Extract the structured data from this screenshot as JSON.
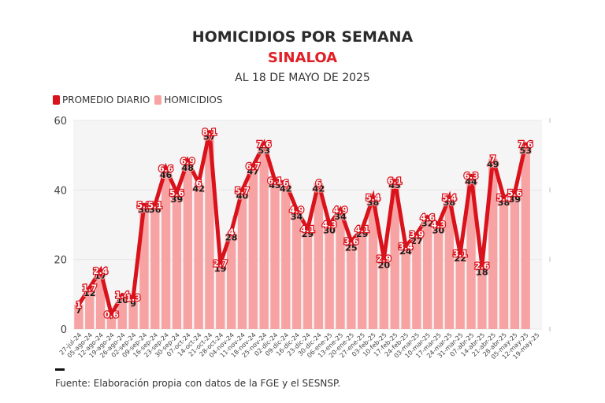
{
  "header": {
    "title": "HOMICIDIOS POR SEMANA",
    "subtitle": "SINALOA",
    "date": "AL 18 DE MAYO DE 2025"
  },
  "legend": [
    {
      "label": "PROMEDIO DIARIO",
      "color": "#d9121b"
    },
    {
      "label": "HOMICIDIOS",
      "color": "#f7a3a3"
    }
  ],
  "footer": {
    "source": "Fuente: Elaboración propia con datos de la FGE y el SESNSP."
  },
  "colors": {
    "bar": "#f7a3a3",
    "line": "#d9121b",
    "plot_bg": "#f5f5f6",
    "grid": "#e6e6e6"
  },
  "chart_data": {
    "type": "bar+line",
    "title": "HOMICIDIOS POR SEMANA",
    "subtitle": "SINALOA",
    "xlabel": "",
    "ylabel": "",
    "ylim": [
      0,
      60
    ],
    "yticks": [
      0,
      20,
      40,
      60
    ],
    "grid": true,
    "legend_position": "top-left",
    "categories": [
      "27-jul-24",
      "05-ago-24",
      "12-ago-24",
      "19-ago-24",
      "26-ago-24",
      "02-sep-24",
      "09-sep-24",
      "16-sep-24",
      "23-sep-24",
      "30-sep-24",
      "07-oct-24",
      "14-oct-24",
      "21-oct-24",
      "28-oct-24",
      "04-nov-24",
      "11-nov-24",
      "18-nov-24",
      "25-nov-24",
      "02-dic-24",
      "09-dic-24",
      "16-dic-24",
      "23-dic-24",
      "30-dic-24",
      "06-ene-25",
      "13-ene-25",
      "20-ene-25",
      "27-ene-25",
      "03-feb-25",
      "10-feb-25",
      "17-feb-25",
      "24-feb-25",
      "03-mar-25",
      "10-mar-25",
      "17-mar-25",
      "24-mar-25",
      "31-mar-25",
      "07-abr-25",
      "14-abr-25",
      "21-abr-25",
      "28-abr-25",
      "05-may-25",
      "12-may-25",
      "19-may-25"
    ],
    "series": [
      {
        "name": "HOMICIDIOS",
        "type": "bar",
        "values": [
          7,
          12,
          17,
          4,
          10,
          9,
          36,
          36,
          46,
          39,
          48,
          42,
          57,
          19,
          28,
          40,
          47,
          53,
          43,
          42,
          34,
          29,
          42,
          30,
          34,
          25,
          29,
          38,
          20,
          43,
          24,
          27,
          32,
          30,
          38,
          22,
          44,
          18,
          49,
          38,
          39,
          53,
          null
        ],
        "labels": [
          "7",
          "12",
          "17",
          "",
          "10",
          "9",
          "36",
          "36",
          "46",
          "39",
          "48",
          "42",
          "57",
          "19",
          "28",
          "40",
          "47",
          "53",
          "43",
          "42",
          "34",
          "29",
          "42",
          "30",
          "34",
          "25",
          "29",
          "38",
          "20",
          "43",
          "24",
          "27",
          "32",
          "30",
          "38",
          "22",
          "44",
          "18",
          "49",
          "38",
          "39",
          "53",
          ""
        ]
      },
      {
        "name": "PROMEDIO DIARIO",
        "type": "line",
        "values": [
          1,
          1.7,
          2.4,
          0.6,
          1.4,
          1.3,
          5.1,
          5.1,
          6.6,
          5.6,
          6.9,
          6,
          8.1,
          2.7,
          4,
          5.7,
          6.7,
          7.6,
          6.1,
          6,
          4.9,
          4.1,
          6,
          4.3,
          4.9,
          3.6,
          4.1,
          5.4,
          2.9,
          6.1,
          3.4,
          3.9,
          4.6,
          4.3,
          5.4,
          3.1,
          6.3,
          2.6,
          7,
          5.4,
          5.6,
          7.6,
          null
        ],
        "labels": [
          "1",
          "1.7",
          "2.4",
          "0.6",
          "1.4",
          "1.3",
          "5.1",
          "5.1",
          "6.6",
          "5.6",
          "6.9",
          "6",
          "8.1",
          "2.7",
          "4",
          "5.7",
          "6.7",
          "7.6",
          "6.1",
          "6",
          "4.9",
          "4.1",
          "6",
          "4.3",
          "4.9",
          "3.6",
          "4.1",
          "5.4",
          "2.9",
          "6.1",
          "3.4",
          "3.9",
          "4.6",
          "4.3",
          "5.4",
          "3.1",
          "6.3",
          "2.6",
          "7",
          "5.4",
          "5.6",
          "7.6",
          ""
        ]
      }
    ]
  }
}
